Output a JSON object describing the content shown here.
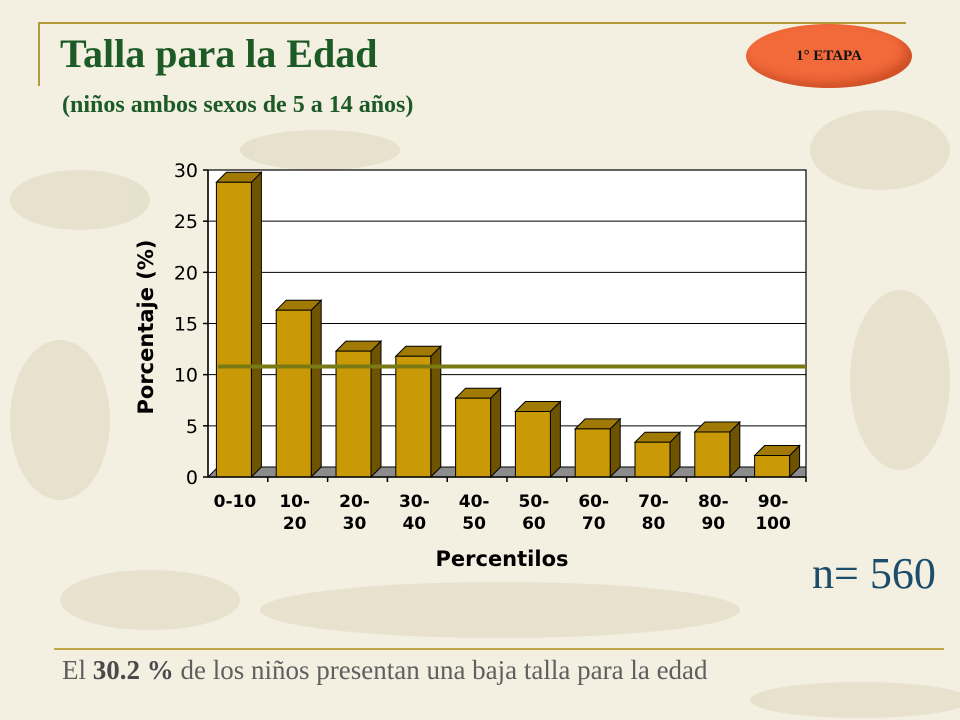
{
  "header": {
    "title": "Talla para la Edad",
    "subtitle": "(niños ambos sexos de 5 a 14 años)",
    "badge": "1° ETAPA"
  },
  "sample_size": "n= 560",
  "footer": {
    "prefix": "El",
    "highlight": "30.2 %",
    "suffix": "de los niños presentan una baja talla para la edad"
  },
  "colors": {
    "bar_front": "#c99a06",
    "bar_side": "#6e5300",
    "bar_top": "#a07a05",
    "reference_line": "#7a7a14",
    "title_green": "#1c5a26"
  },
  "chart_data": {
    "type": "bar",
    "categories": [
      [
        "0-10"
      ],
      [
        "10-",
        "20"
      ],
      [
        "20-",
        "30"
      ],
      [
        "30-",
        "40"
      ],
      [
        "40-",
        "50"
      ],
      [
        "50-",
        "60"
      ],
      [
        "60-",
        "70"
      ],
      [
        "70-",
        "80"
      ],
      [
        "80-",
        "90"
      ],
      [
        "90-",
        "100"
      ]
    ],
    "values": [
      28.8,
      16.3,
      12.3,
      11.8,
      7.7,
      6.4,
      4.7,
      3.4,
      4.4,
      2.1
    ],
    "xlabel": "Percentilos",
    "ylabel": "Porcentaje (%)",
    "ylim": [
      0,
      30
    ],
    "yticks": [
      0,
      5,
      10,
      15,
      20,
      25,
      30
    ],
    "reference_value": 10.8,
    "grid": true,
    "style": "3d"
  }
}
